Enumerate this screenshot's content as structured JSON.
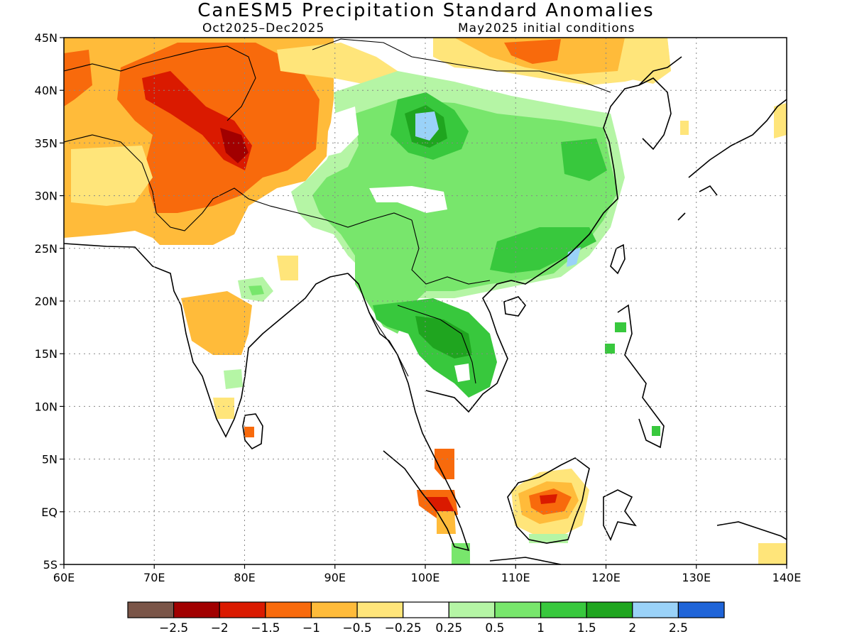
{
  "header": {
    "title": "CanESM5 Precipitation Standard Anomalies",
    "period": "Oct2025–Dec2025",
    "init": "May2025 initial conditions"
  },
  "map": {
    "lon_ticks": [
      "60E",
      "70E",
      "80E",
      "90E",
      "100E",
      "110E",
      "120E",
      "130E",
      "140E"
    ],
    "lat_ticks": [
      "45N",
      "40N",
      "35N",
      "30N",
      "25N",
      "20N",
      "15N",
      "10N",
      "5N",
      "EQ",
      "5S"
    ],
    "grid": "dotted",
    "extent": {
      "lon_min": 60,
      "lon_max": 140,
      "lat_min": -5,
      "lat_max": 45
    }
  },
  "colorbar": {
    "labels": [
      "−2.5",
      "−2",
      "−1.5",
      "−1",
      "−0.5",
      "−0.25",
      "0.25",
      "0.5",
      "1",
      "1.5",
      "2",
      "2.5"
    ],
    "colors": [
      "#7a5548",
      "#a10000",
      "#da1a00",
      "#f86a0c",
      "#ffbb3a",
      "#ffe57a",
      "#ffffff",
      "#b5f5a5",
      "#78e66c",
      "#38c83d",
      "#1fa51f",
      "#9ad2f8",
      "#1f64d8"
    ]
  },
  "colors": {
    "land_outline": "#000000",
    "frame": "#000000"
  }
}
